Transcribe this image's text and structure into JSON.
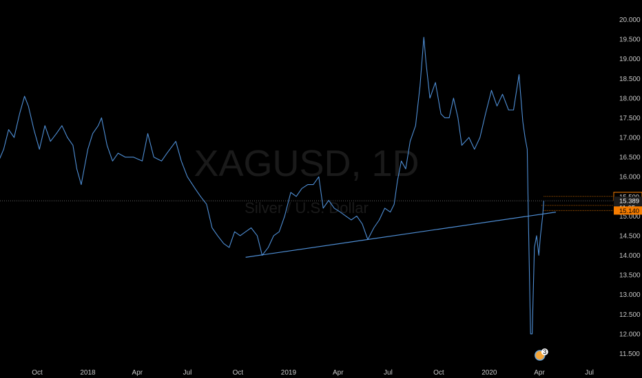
{
  "watermark": {
    "symbol": "XAGUSD, 1D",
    "description": "Silver / U.S. Dollar"
  },
  "chart_data": {
    "type": "line",
    "ylim": [
      11.3,
      20.2
    ],
    "y_ticks": [
      11.5,
      12.0,
      12.5,
      13.0,
      13.5,
      14.0,
      14.5,
      15.0,
      15.5,
      16.0,
      16.5,
      17.0,
      17.5,
      18.0,
      18.5,
      19.0,
      19.5,
      20.0
    ],
    "y_tick_labels": [
      "11.500",
      "12.000",
      "12.500",
      "13.000",
      "13.500",
      "14.000",
      "14.500",
      "15.000",
      "15.500",
      "16.000",
      "16.500",
      "17.000",
      "17.500",
      "18.000",
      "18.500",
      "19.000",
      "19.500",
      "20.000"
    ],
    "x_ticks": [
      {
        "date": "2017-10-01",
        "label": "Oct"
      },
      {
        "date": "2018-01-01",
        "label": "2018"
      },
      {
        "date": "2018-04-01",
        "label": "Apr"
      },
      {
        "date": "2018-07-01",
        "label": "Jul"
      },
      {
        "date": "2018-10-01",
        "label": "Oct"
      },
      {
        "date": "2019-01-01",
        "label": "2019"
      },
      {
        "date": "2019-04-01",
        "label": "Apr"
      },
      {
        "date": "2019-07-01",
        "label": "Jul"
      },
      {
        "date": "2019-10-01",
        "label": "Oct"
      },
      {
        "date": "2020-01-01",
        "label": "2020"
      },
      {
        "date": "2020-04-01",
        "label": "Apr"
      },
      {
        "date": "2020-07-01",
        "label": "Jul"
      }
    ],
    "series": [
      {
        "color": "#4f8fd6",
        "points": [
          [
            "2017-07-10",
            16.9
          ],
          [
            "2017-07-20",
            16.3
          ],
          [
            "2017-08-01",
            16.7
          ],
          [
            "2017-08-10",
            17.2
          ],
          [
            "2017-08-20",
            17.0
          ],
          [
            "2017-08-30",
            17.6
          ],
          [
            "2017-09-08",
            18.05
          ],
          [
            "2017-09-15",
            17.8
          ],
          [
            "2017-09-25",
            17.2
          ],
          [
            "2017-10-05",
            16.7
          ],
          [
            "2017-10-15",
            17.3
          ],
          [
            "2017-10-25",
            16.9
          ],
          [
            "2017-11-05",
            17.1
          ],
          [
            "2017-11-15",
            17.3
          ],
          [
            "2017-11-25",
            17.0
          ],
          [
            "2017-12-05",
            16.8
          ],
          [
            "2017-12-12",
            16.2
          ],
          [
            "2017-12-20",
            15.8
          ],
          [
            "2018-01-01",
            16.7
          ],
          [
            "2018-01-10",
            17.1
          ],
          [
            "2018-01-20",
            17.3
          ],
          [
            "2018-01-26",
            17.5
          ],
          [
            "2018-02-05",
            16.8
          ],
          [
            "2018-02-15",
            16.4
          ],
          [
            "2018-02-25",
            16.6
          ],
          [
            "2018-03-10",
            16.5
          ],
          [
            "2018-03-25",
            16.5
          ],
          [
            "2018-04-10",
            16.4
          ],
          [
            "2018-04-20",
            17.1
          ],
          [
            "2018-05-01",
            16.5
          ],
          [
            "2018-05-15",
            16.4
          ],
          [
            "2018-05-25",
            16.6
          ],
          [
            "2018-06-10",
            16.9
          ],
          [
            "2018-06-20",
            16.4
          ],
          [
            "2018-07-01",
            16.0
          ],
          [
            "2018-07-15",
            15.7
          ],
          [
            "2018-07-25",
            15.5
          ],
          [
            "2018-08-05",
            15.3
          ],
          [
            "2018-08-15",
            14.7
          ],
          [
            "2018-08-25",
            14.5
          ],
          [
            "2018-09-05",
            14.3
          ],
          [
            "2018-09-15",
            14.2
          ],
          [
            "2018-09-25",
            14.6
          ],
          [
            "2018-10-05",
            14.5
          ],
          [
            "2018-10-15",
            14.6
          ],
          [
            "2018-10-25",
            14.7
          ],
          [
            "2018-11-05",
            14.5
          ],
          [
            "2018-11-14",
            14.0
          ],
          [
            "2018-11-25",
            14.2
          ],
          [
            "2018-12-05",
            14.5
          ],
          [
            "2018-12-15",
            14.6
          ],
          [
            "2018-12-25",
            15.0
          ],
          [
            "2019-01-05",
            15.6
          ],
          [
            "2019-01-15",
            15.5
          ],
          [
            "2019-01-25",
            15.7
          ],
          [
            "2019-02-05",
            15.8
          ],
          [
            "2019-02-15",
            15.8
          ],
          [
            "2019-02-25",
            16.0
          ],
          [
            "2019-03-05",
            15.2
          ],
          [
            "2019-03-15",
            15.4
          ],
          [
            "2019-03-25",
            15.2
          ],
          [
            "2019-04-05",
            15.1
          ],
          [
            "2019-04-15",
            15.0
          ],
          [
            "2019-04-25",
            14.9
          ],
          [
            "2019-05-05",
            15.0
          ],
          [
            "2019-05-15",
            14.8
          ],
          [
            "2019-05-25",
            14.4
          ],
          [
            "2019-06-05",
            14.7
          ],
          [
            "2019-06-15",
            14.9
          ],
          [
            "2019-06-25",
            15.2
          ],
          [
            "2019-07-05",
            15.1
          ],
          [
            "2019-07-12",
            15.3
          ],
          [
            "2019-07-18",
            15.9
          ],
          [
            "2019-07-25",
            16.4
          ],
          [
            "2019-08-02",
            16.2
          ],
          [
            "2019-08-10",
            16.9
          ],
          [
            "2019-08-20",
            17.3
          ],
          [
            "2019-08-28",
            18.3
          ],
          [
            "2019-09-04",
            19.55
          ],
          [
            "2019-09-08",
            18.9
          ],
          [
            "2019-09-15",
            18.0
          ],
          [
            "2019-09-25",
            18.4
          ],
          [
            "2019-10-05",
            17.6
          ],
          [
            "2019-10-12",
            17.5
          ],
          [
            "2019-10-20",
            17.5
          ],
          [
            "2019-10-28",
            18.0
          ],
          [
            "2019-11-05",
            17.5
          ],
          [
            "2019-11-12",
            16.8
          ],
          [
            "2019-11-25",
            17.0
          ],
          [
            "2019-12-05",
            16.7
          ],
          [
            "2019-12-15",
            17.0
          ],
          [
            "2019-12-25",
            17.6
          ],
          [
            "2020-01-05",
            18.2
          ],
          [
            "2020-01-15",
            17.8
          ],
          [
            "2020-01-25",
            18.1
          ],
          [
            "2020-02-05",
            17.7
          ],
          [
            "2020-02-14",
            17.7
          ],
          [
            "2020-02-24",
            18.6
          ],
          [
            "2020-03-02",
            17.4
          ],
          [
            "2020-03-06",
            17.0
          ],
          [
            "2020-03-10",
            16.7
          ],
          [
            "2020-03-12",
            15.0
          ],
          [
            "2020-03-16",
            12.0
          ],
          [
            "2020-03-19",
            12.0
          ],
          [
            "2020-03-23",
            14.2
          ],
          [
            "2020-03-27",
            14.5
          ],
          [
            "2020-03-31",
            14.0
          ],
          [
            "2020-04-03",
            14.5
          ],
          [
            "2020-04-07",
            15.0
          ],
          [
            "2020-04-09",
            15.389
          ]
        ]
      }
    ],
    "trendline": {
      "start": [
        "2018-10-15",
        13.95
      ],
      "end": [
        "2020-05-01",
        15.1
      ],
      "color": "#4f8fd6"
    },
    "price_labels": [
      {
        "value": 15.5,
        "text": "15.500",
        "style": "outline"
      },
      {
        "value": 15.389,
        "text": "15.389",
        "style": "dark"
      },
      {
        "value": 15.22,
        "text": "11:05",
        "style": "dark"
      },
      {
        "value": 15.14,
        "text": "15.140",
        "style": "filled"
      }
    ],
    "accent_color": "#f57c00",
    "crosshair_value": 15.389,
    "event_badge_count": "3",
    "event_badge_date": "2020-04-02"
  }
}
